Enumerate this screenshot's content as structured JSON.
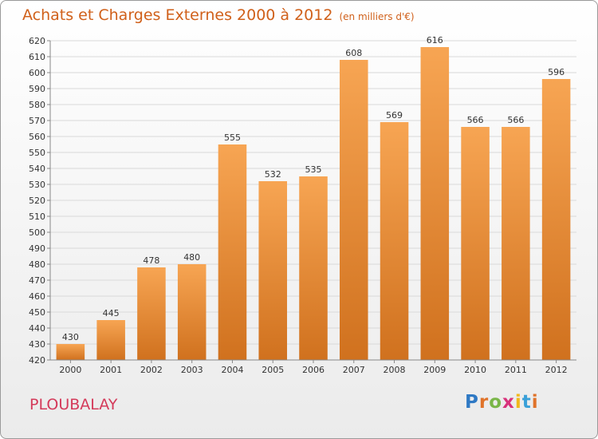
{
  "header": {
    "title": "Achats et Charges Externes 2000 à 2012",
    "subtitle": "(en milliers d'€)"
  },
  "footer": {
    "city": "PLOUBALAY",
    "brand": "Proxiti"
  },
  "colors": {
    "bar_top": "#f7a553",
    "bar_bottom": "#d0711e",
    "title": "#d0601a",
    "city": "#d43a5a"
  },
  "chart_data": {
    "type": "bar",
    "categories": [
      "2000",
      "2001",
      "2002",
      "2003",
      "2004",
      "2005",
      "2006",
      "2007",
      "2008",
      "2009",
      "2010",
      "2011",
      "2012"
    ],
    "values": [
      430,
      445,
      478,
      480,
      555,
      532,
      535,
      608,
      569,
      616,
      566,
      566,
      596
    ],
    "ylim": [
      420,
      620
    ],
    "ytick_step": 10,
    "grid": true,
    "data_labels": true
  }
}
